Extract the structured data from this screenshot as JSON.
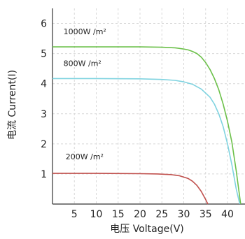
{
  "chart_data": {
    "type": "line",
    "title": "",
    "xlabel": "电压 Voltage(V)",
    "ylabel": "电流 Current(I)",
    "xlim": [
      0,
      44
    ],
    "ylim": [
      0,
      6.5
    ],
    "x_ticks": [
      5,
      10,
      15,
      20,
      25,
      30,
      35,
      40
    ],
    "y_ticks": [
      1,
      2,
      3,
      4,
      5,
      6
    ],
    "grid": true,
    "legend": "none",
    "series": [
      {
        "name": "1000W /m²",
        "color": "#6cc04a",
        "x": [
          0,
          10,
          20,
          25,
          28,
          30,
          31,
          32,
          33,
          34,
          35,
          36,
          37,
          38,
          39,
          40,
          41,
          42,
          43
        ],
        "y": [
          5.22,
          5.22,
          5.22,
          5.21,
          5.19,
          5.15,
          5.12,
          5.07,
          5.0,
          4.88,
          4.7,
          4.47,
          4.17,
          3.8,
          3.32,
          2.75,
          2.05,
          1.1,
          0.0
        ]
      },
      {
        "name": "800W /m²",
        "color": "#7fd3e0",
        "x": [
          0,
          10,
          20,
          25,
          28,
          30,
          32,
          34,
          36,
          37,
          38,
          39,
          40,
          41,
          42,
          42.8
        ],
        "y": [
          4.17,
          4.17,
          4.16,
          4.14,
          4.11,
          4.06,
          3.98,
          3.82,
          3.55,
          3.32,
          3.0,
          2.57,
          2.0,
          1.3,
          0.5,
          0.0
        ]
      },
      {
        "name": "200W /m²",
        "color": "#c0504d",
        "x": [
          0,
          10,
          20,
          24,
          27,
          29,
          31,
          32,
          33,
          34,
          35,
          35.5
        ],
        "y": [
          1.02,
          1.02,
          1.01,
          1.0,
          0.98,
          0.94,
          0.85,
          0.76,
          0.62,
          0.42,
          0.15,
          0.0
        ]
      }
    ]
  }
}
